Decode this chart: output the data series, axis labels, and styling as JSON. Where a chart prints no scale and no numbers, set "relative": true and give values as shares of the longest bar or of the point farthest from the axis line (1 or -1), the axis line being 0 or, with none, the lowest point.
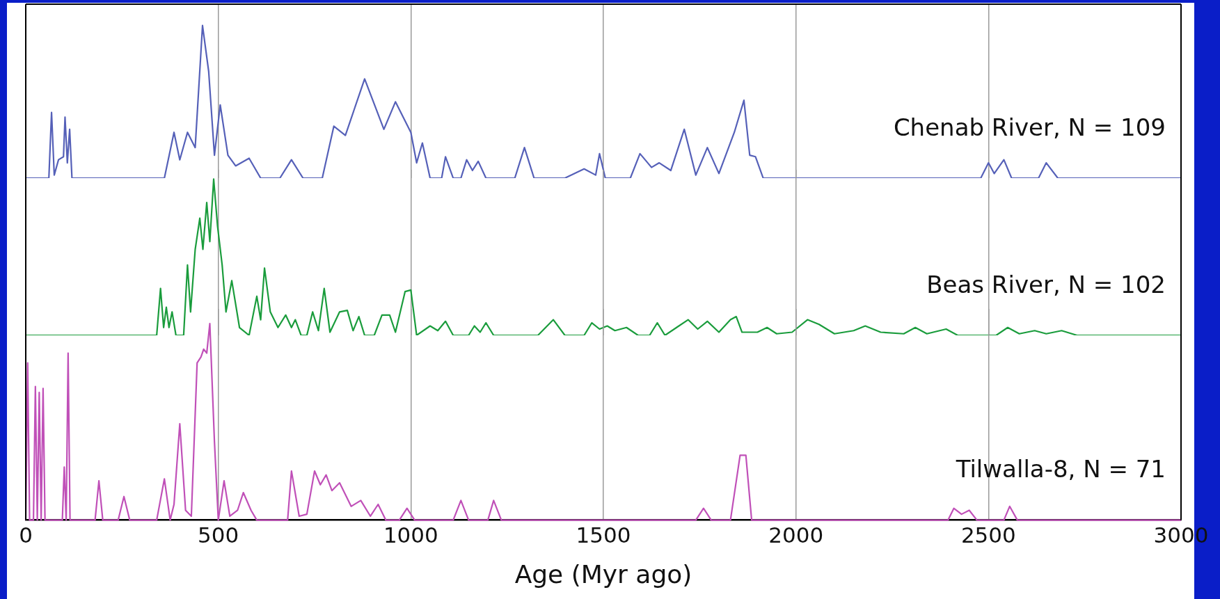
{
  "chart_data": [
    {
      "type": "line",
      "relative": true,
      "xlim": [
        0,
        3000
      ],
      "xticks": [
        0,
        500,
        1000,
        1500,
        2000,
        2500,
        3000
      ],
      "grid": "x",
      "tick_labels": false,
      "marker": "none",
      "series": [
        {
          "name": "Chenab River, N = 109",
          "color": "#5560b8",
          "x": [
            0,
            60,
            67,
            74,
            85,
            98,
            102,
            108,
            114,
            120,
            360,
            385,
            400,
            420,
            440,
            459,
            475,
            490,
            505,
            525,
            545,
            580,
            610,
            660,
            690,
            720,
            770,
            800,
            830,
            880,
            930,
            960,
            1000,
            1015,
            1030,
            1050,
            1080,
            1090,
            1110,
            1130,
            1145,
            1160,
            1175,
            1195,
            1270,
            1295,
            1320,
            1400,
            1450,
            1480,
            1490,
            1505,
            1570,
            1595,
            1625,
            1645,
            1675,
            1710,
            1740,
            1770,
            1800,
            1840,
            1865,
            1880,
            1895,
            1915,
            2480,
            2500,
            2515,
            2540,
            2560,
            2630,
            2650,
            2680,
            3000
          ],
          "values": [
            0,
            0,
            0.43,
            0.02,
            0.12,
            0.14,
            0.4,
            0.1,
            0.32,
            0,
            0,
            0.3,
            0.12,
            0.3,
            0.2,
            1,
            0.7,
            0.15,
            0.48,
            0.15,
            0.08,
            0.13,
            0,
            0,
            0.12,
            0,
            0,
            0.34,
            0.28,
            0.65,
            0.32,
            0.5,
            0.3,
            0.1,
            0.23,
            0,
            0,
            0.14,
            0,
            0,
            0.12,
            0.05,
            0.11,
            0,
            0,
            0.2,
            0,
            0,
            0.06,
            0.02,
            0.16,
            0,
            0,
            0.16,
            0.07,
            0.1,
            0.05,
            0.32,
            0.02,
            0.2,
            0.03,
            0.3,
            0.51,
            0.15,
            0.14,
            0,
            0,
            0.1,
            0.03,
            0.12,
            0,
            0,
            0.1,
            0,
            0
          ]
        }
      ]
    },
    {
      "type": "line",
      "relative": true,
      "xlim": [
        0,
        3000
      ],
      "xticks": [
        0,
        500,
        1000,
        1500,
        2000,
        2500,
        3000
      ],
      "grid": "x",
      "tick_labels": false,
      "marker": "none",
      "series": [
        {
          "name": "Beas River, N = 102",
          "color": "#1a9c3c",
          "x": [
            0,
            340,
            350,
            358,
            365,
            372,
            380,
            390,
            410,
            420,
            428,
            440,
            452,
            460,
            470,
            478,
            488,
            498,
            510,
            520,
            535,
            555,
            580,
            600,
            610,
            620,
            635,
            655,
            675,
            690,
            700,
            715,
            730,
            745,
            760,
            775,
            790,
            815,
            835,
            850,
            865,
            880,
            905,
            925,
            945,
            960,
            985,
            1000,
            1015,
            1050,
            1070,
            1090,
            1110,
            1150,
            1165,
            1180,
            1195,
            1215,
            1330,
            1370,
            1400,
            1450,
            1470,
            1490,
            1510,
            1530,
            1560,
            1590,
            1620,
            1640,
            1660,
            1690,
            1720,
            1745,
            1770,
            1800,
            1830,
            1845,
            1860,
            1900,
            1925,
            1950,
            1990,
            2030,
            2060,
            2100,
            2150,
            2180,
            2220,
            2280,
            2310,
            2340,
            2390,
            2420,
            2520,
            2550,
            2580,
            2620,
            2650,
            2690,
            2730,
            3000
          ],
          "values": [
            0,
            0,
            0.3,
            0.05,
            0.18,
            0.05,
            0.15,
            0,
            0,
            0.45,
            0.15,
            0.55,
            0.75,
            0.55,
            0.85,
            0.6,
            1,
            0.7,
            0.45,
            0.15,
            0.35,
            0.05,
            0,
            0.25,
            0.1,
            0.43,
            0.15,
            0.05,
            0.13,
            0.05,
            0.1,
            0,
            0,
            0.15,
            0.03,
            0.3,
            0.02,
            0.15,
            0.16,
            0.03,
            0.12,
            0,
            0,
            0.13,
            0.13,
            0.02,
            0.28,
            0.29,
            0,
            0.06,
            0.03,
            0.09,
            0,
            0,
            0.06,
            0.02,
            0.08,
            0,
            0,
            0.1,
            0,
            0,
            0.08,
            0.04,
            0.06,
            0.03,
            0.05,
            0,
            0,
            0.08,
            0,
            0.05,
            0.1,
            0.04,
            0.09,
            0.02,
            0.1,
            0.12,
            0.02,
            0.02,
            0.05,
            0.01,
            0.02,
            0.1,
            0.07,
            0.01,
            0.03,
            0.06,
            0.02,
            0.01,
            0.05,
            0.01,
            0.04,
            0,
            0,
            0.05,
            0.01,
            0.03,
            0.01,
            0.03,
            0,
            0
          ]
        }
      ]
    },
    {
      "type": "line",
      "relative": true,
      "xlim": [
        0,
        3000
      ],
      "xticks": [
        0,
        500,
        1000,
        1500,
        2000,
        2500,
        3000
      ],
      "grid": "x",
      "marker": "none",
      "xlabel": "Age (Myr ago)",
      "series": [
        {
          "name": "Tilwalla-8, N = 71",
          "color": "#c050b8",
          "x": [
            0,
            5,
            10,
            20,
            25,
            30,
            35,
            40,
            45,
            50,
            60,
            95,
            100,
            105,
            110,
            115,
            180,
            190,
            200,
            240,
            255,
            270,
            340,
            360,
            375,
            385,
            400,
            415,
            430,
            445,
            455,
            462,
            470,
            478,
            490,
            500,
            515,
            530,
            550,
            565,
            585,
            600,
            680,
            690,
            710,
            730,
            750,
            765,
            780,
            795,
            815,
            845,
            870,
            895,
            915,
            935,
            970,
            990,
            1010,
            1110,
            1130,
            1150,
            1200,
            1215,
            1235,
            1740,
            1760,
            1780,
            1830,
            1855,
            1870,
            1885,
            2395,
            2410,
            2430,
            2450,
            2470,
            2540,
            2555,
            2575,
            3000
          ],
          "values": [
            0,
            0.8,
            0,
            0,
            0.68,
            0,
            0.65,
            0,
            0.67,
            0,
            0,
            0,
            0.27,
            0,
            0.85,
            0,
            0,
            0.2,
            0,
            0,
            0.12,
            0,
            0,
            0.21,
            0,
            0.08,
            0.49,
            0.05,
            0.02,
            0.8,
            0.83,
            0.87,
            0.85,
            1,
            0.4,
            0,
            0.2,
            0.02,
            0.05,
            0.14,
            0.05,
            0,
            0,
            0.25,
            0.02,
            0.03,
            0.25,
            0.18,
            0.23,
            0.15,
            0.19,
            0.07,
            0.1,
            0.02,
            0.08,
            0,
            0,
            0.06,
            0,
            0,
            0.1,
            0,
            0,
            0.1,
            0,
            0,
            0.06,
            0,
            0,
            0.33,
            0.33,
            0,
            0,
            0.06,
            0.03,
            0.05,
            0,
            0,
            0.07,
            0,
            0
          ]
        }
      ]
    }
  ]
}
